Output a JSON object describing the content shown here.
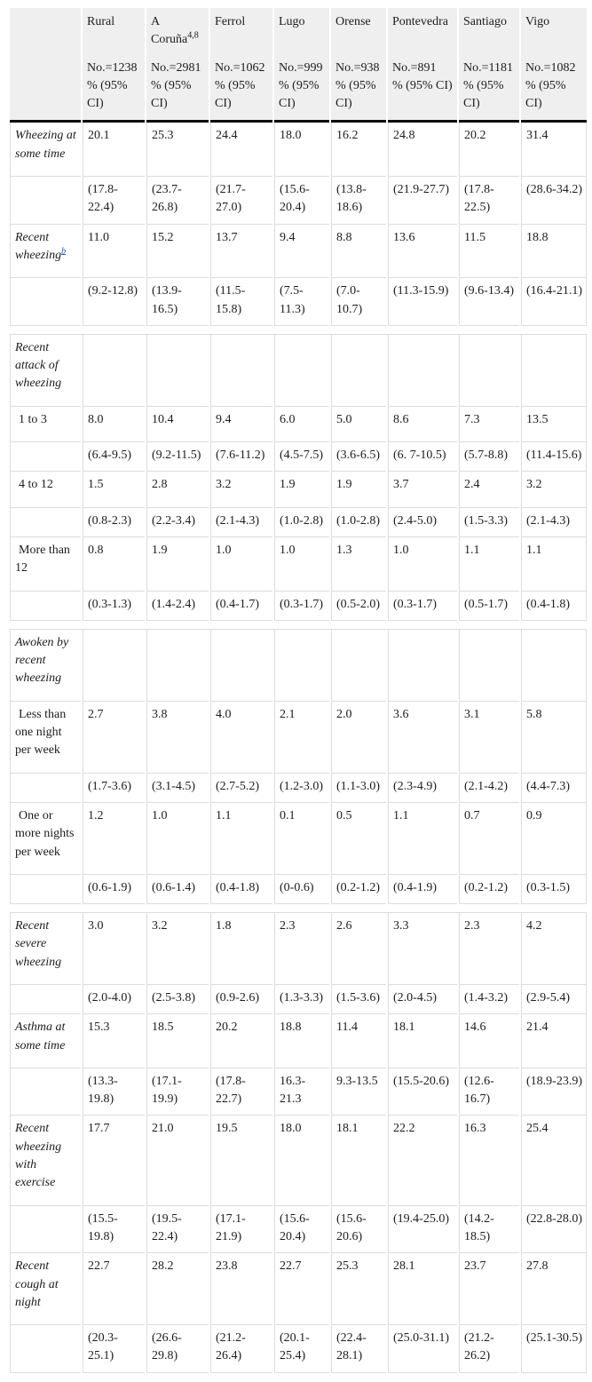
{
  "colors": {
    "header_bg": "#efefef",
    "grid": "#dcdcdc",
    "heavy_rule": "#0b0b0b",
    "link": "#2a52be"
  },
  "table": {
    "columns": [
      {
        "name": "Rural",
        "sup": "",
        "n": "No.=1238",
        "ci": "% (95% CI)"
      },
      {
        "name": "A Coruña",
        "sup": "4,8",
        "n": "No.=2981",
        "ci": "% (95% CI)"
      },
      {
        "name": "Ferrol",
        "sup": "",
        "n": "No.=1062",
        "ci": "% (95% CI)"
      },
      {
        "name": "Lugo",
        "sup": "",
        "n": "No.=999",
        "ci": "% (95% CI)"
      },
      {
        "name": "Orense",
        "sup": "",
        "n": "No.=938",
        "ci": "% (95% CI)"
      },
      {
        "name": "Pontevedra",
        "sup": "",
        "n": "No.=891",
        "ci": "% (95% CI)"
      },
      {
        "name": "Santiago",
        "sup": "",
        "n": "No.=1181",
        "ci": "% (95% CI)"
      },
      {
        "name": "Vigo",
        "sup": "",
        "n": "No.=1082",
        "ci": "% (95% CI)"
      }
    ],
    "rows": [
      {
        "kind": "data",
        "label": "Wheezing at some time",
        "italic": true,
        "values": [
          "20.1",
          "25.3",
          "24.4",
          "18.0",
          "16.2",
          "24.8",
          "20.2",
          "31.4"
        ]
      },
      {
        "kind": "ci",
        "label": "",
        "values": [
          "(17.8-22.4)",
          "(23.7-26.8)",
          "(21.7-27.0)",
          "(15.6-20.4)",
          "(13.8-18.6)",
          "(21.9-27.7)",
          "(17.8-22.5)",
          "(28.6-34.2)"
        ]
      },
      {
        "kind": "data",
        "label": "Recent wheezing",
        "italic": true,
        "sup_link": "b",
        "values": [
          "11.0",
          "15.2",
          "13.7",
          "9.4",
          "8.8",
          "13.6",
          "11.5",
          "18.8"
        ]
      },
      {
        "kind": "ci",
        "label": "",
        "values": [
          "(9.2-12.8)",
          "(13.9-16.5)",
          "(11.5-15.8)",
          "(7.5-11.3)",
          "(7.0-10.7)",
          "(11.3-15.9)",
          "(9.6-13.4)",
          "(16.4-21.1)"
        ]
      },
      {
        "kind": "spacer"
      },
      {
        "kind": "section",
        "label": "Recent attack of wheezing",
        "italic": true
      },
      {
        "kind": "data",
        "label": "1 to 3",
        "indent": true,
        "values": [
          "8.0",
          "10.4",
          "9.4",
          "6.0",
          "5.0",
          "8.6",
          "7.3",
          "13.5"
        ]
      },
      {
        "kind": "ci",
        "label": "",
        "values": [
          "(6.4-9.5)",
          "(9.2-11.5)",
          "(7.6-11.2)",
          "(4.5-7.5)",
          "(3.6-6.5)",
          "(6. 7-10.5)",
          "(5.7-8.8)",
          "(11.4-15.6)"
        ]
      },
      {
        "kind": "data",
        "label": "4 to 12",
        "indent": true,
        "values": [
          "1.5",
          "2.8",
          "3.2",
          "1.9",
          "1.9",
          "3.7",
          "2.4",
          "3.2"
        ]
      },
      {
        "kind": "ci",
        "label": "",
        "values": [
          "(0.8-2.3)",
          "(2.2-3.4)",
          "(2.1-4.3)",
          "(1.0-2.8)",
          "(1.0-2.8)",
          "(2.4-5.0)",
          "(1.5-3.3)",
          "(2.1-4.3)"
        ]
      },
      {
        "kind": "data",
        "label": "More than 12",
        "indent": true,
        "values": [
          "0.8",
          "1.9",
          "1.0",
          "1.0",
          "1.3",
          "1.0",
          "1.1",
          "1.1"
        ]
      },
      {
        "kind": "ci",
        "label": "",
        "values": [
          "(0.3-1.3)",
          "(1.4-2.4)",
          "(0.4-1.7)",
          "(0.3-1.7)",
          "(0.5-2.0)",
          "(0.3-1.7)",
          "(0.5-1.7)",
          "(0.4-1.8)"
        ]
      },
      {
        "kind": "spacer"
      },
      {
        "kind": "section",
        "label": "Awoken by recent wheezing",
        "italic": true
      },
      {
        "kind": "data",
        "label": "Less than one night per week",
        "indent": true,
        "values": [
          "2.7",
          "3.8",
          "4.0",
          "2.1",
          "2.0",
          "3.6",
          "3.1",
          "5.8"
        ]
      },
      {
        "kind": "ci",
        "label": "",
        "values": [
          "(1.7-3.6)",
          "(3.1-4.5)",
          "(2.7-5.2)",
          "(1.2-3.0)",
          "(1.1-3.0)",
          "(2.3-4.9)",
          "(2.1-4.2)",
          "(4.4-7.3)"
        ]
      },
      {
        "kind": "data",
        "label": "One or more nights per week",
        "indent": true,
        "values": [
          "1.2",
          "1.0",
          "1.1",
          "0.1",
          "0.5",
          "1.1",
          "0.7",
          "0.9"
        ]
      },
      {
        "kind": "ci",
        "label": "",
        "values": [
          "(0.6-1.9)",
          "(0.6-1.4)",
          "(0.4-1.8)",
          "(0-0.6)",
          "(0.2-1.2)",
          "(0.4-1.9)",
          "(0.2-1.2)",
          "(0.3-1.5)"
        ]
      },
      {
        "kind": "spacer"
      },
      {
        "kind": "data",
        "label": "Recent severe wheezing",
        "italic": true,
        "values": [
          "3.0",
          "3.2",
          "1.8",
          "2.3",
          "2.6",
          "3.3",
          "2.3",
          "4.2"
        ]
      },
      {
        "kind": "ci",
        "label": "",
        "values": [
          "(2.0-4.0)",
          "(2.5-3.8)",
          "(0.9-2.6)",
          "(1.3-3.3)",
          "(1.5-3.6)",
          "(2.0-4.5)",
          "(1.4-3.2)",
          "(2.9-5.4)"
        ]
      },
      {
        "kind": "data",
        "label": "Asthma at some time",
        "italic": true,
        "values": [
          "15.3",
          "18.5",
          "20.2",
          "18.8",
          "11.4",
          "18.1",
          "14.6",
          "21.4"
        ]
      },
      {
        "kind": "ci",
        "label": "",
        "values": [
          "(13.3-19.8)",
          "(17.1-19.9)",
          "(17.8-22.7)",
          "16.3-21.3",
          "9.3-13.5",
          "(15.5-20.6)",
          "(12.6-16.7)",
          "(18.9-23.9)"
        ]
      },
      {
        "kind": "data",
        "label": "Recent wheezing with exercise",
        "italic": true,
        "values": [
          "17.7",
          "21.0",
          "19.5",
          "18.0",
          "18.1",
          "22.2",
          "16.3",
          "25.4"
        ]
      },
      {
        "kind": "ci",
        "label": "",
        "values": [
          "(15.5-19.8)",
          "(19.5-22.4)",
          "(17.1-21.9)",
          "(15.6-20.4)",
          "(15.6-20.6)",
          "(19.4-25.0)",
          "(14.2-18.5)",
          "(22.8-28.0)"
        ]
      },
      {
        "kind": "data",
        "label": "Recent cough at night",
        "italic": true,
        "values": [
          "22.7",
          "28.2",
          "23.8",
          "22.7",
          "25.3",
          "28.1",
          "23.7",
          "27.8"
        ]
      },
      {
        "kind": "ci",
        "label": "",
        "values": [
          "(20.3-25.1)",
          "(26.6-29.8)",
          "(21.2-26.4)",
          "(20.1-25.4)",
          "(22.4-28.1)",
          "(25.0-31.1)",
          "(21.2-26.2)",
          "(25.1-30.5)"
        ]
      }
    ]
  }
}
